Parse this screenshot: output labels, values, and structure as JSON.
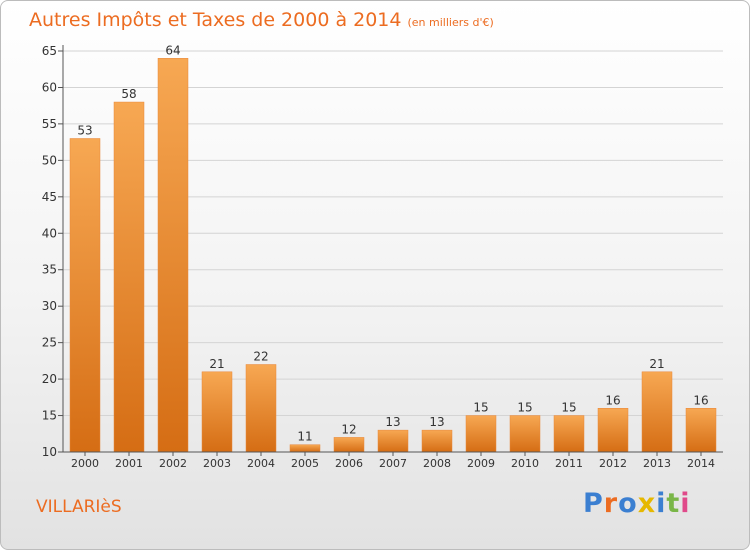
{
  "title": "Autres Impôts et Taxes de 2000 à 2014",
  "subtitle": "(en milliers d'€)",
  "city": "VILLARIèS",
  "logo": "Proxiti",
  "colors": {
    "accent": "#ec6c21",
    "bar_light": "#f5a24f",
    "bar_dark": "#d97118",
    "grid": "#d4d4d4"
  },
  "chart_data": {
    "type": "bar",
    "title": "Autres Impôts et Taxes de 2000 à 2014",
    "subtitle": "(en milliers d'€)",
    "categories": [
      "2000",
      "2001",
      "2002",
      "2003",
      "2004",
      "2005",
      "2006",
      "2007",
      "2008",
      "2009",
      "2010",
      "2011",
      "2012",
      "2013",
      "2014"
    ],
    "values": [
      53,
      58,
      64,
      21,
      22,
      11,
      12,
      13,
      13,
      15,
      15,
      15,
      16,
      21,
      16
    ],
    "ylim": [
      10,
      65
    ],
    "yticks": [
      10,
      15,
      20,
      25,
      30,
      35,
      40,
      45,
      50,
      55,
      60,
      65
    ],
    "grid": true,
    "data_labels": true
  }
}
